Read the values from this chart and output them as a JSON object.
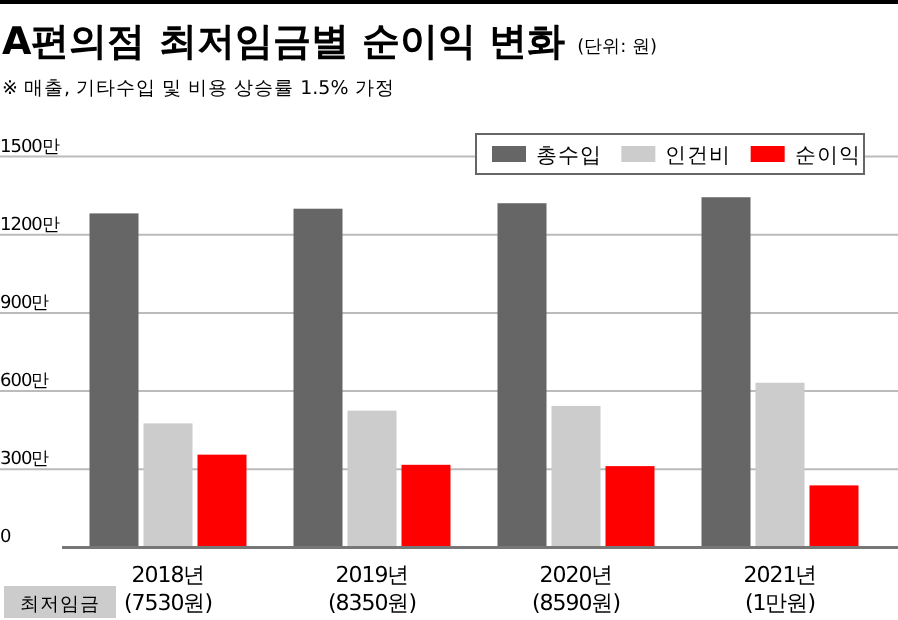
{
  "chart_data": {
    "type": "bar",
    "title": "A편의점 최저임금별 순이익 변화",
    "subtitle": "※ 매출, 기타수입 및 비용 상승률 1.5% 가정",
    "annotations": [
      "(단위: 원)",
      "최저임금"
    ],
    "categories": [
      "2018년 (7530원)",
      "2019년 (8350원)",
      "2020년 (8590원)",
      "2021년 (1만원)"
    ],
    "series": [
      {
        "name": "총수입",
        "color": "#666666",
        "values": [
          1282,
          1300,
          1321,
          1344
        ]
      },
      {
        "name": "인건비",
        "color": "#cccccc",
        "values": [
          476,
          525,
          543,
          632
        ]
      },
      {
        "name": "순이익",
        "color": "#ff0000",
        "values": [
          356,
          317,
          312,
          238
        ]
      }
    ],
    "ylim": [
      0,
      1500
    ],
    "yticks": [
      0,
      {
        "value": 300,
        "label": "300만"
      },
      {
        "value": 600,
        "label": "600만"
      },
      {
        "value": 900,
        "label": "900만"
      },
      {
        "value": 1200,
        "label": "1200만"
      },
      {
        "value": 1500,
        "label": "1500만"
      }
    ],
    "grid": "y",
    "legend": "top right"
  }
}
